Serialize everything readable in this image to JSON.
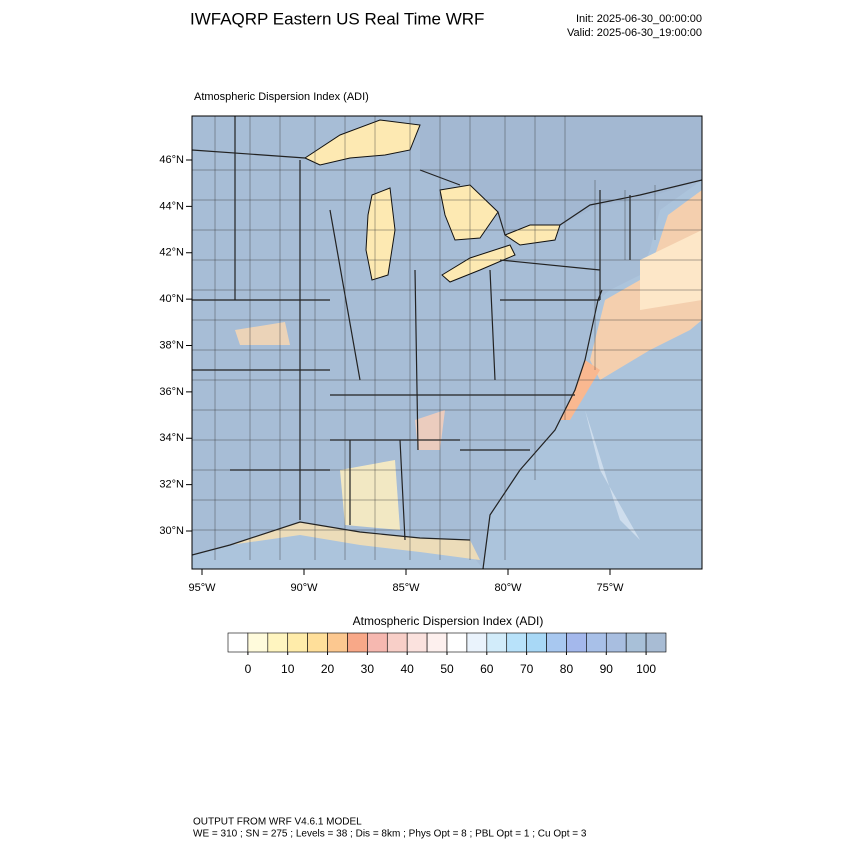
{
  "header": {
    "title": "IWFAQRP Eastern US Real Time WRF",
    "init": "Init: 2025-06-30_00:00:00",
    "valid": "Valid: 2025-06-30_19:00:00"
  },
  "map": {
    "title": "Atmospheric Dispersion Index   (ADI)",
    "lat_ticks": [
      {
        "value": 30,
        "label": "30°N"
      },
      {
        "value": 32,
        "label": "32°N"
      },
      {
        "value": 34,
        "label": "34°N"
      },
      {
        "value": 36,
        "label": "36°N"
      },
      {
        "value": 38,
        "label": "38°N"
      },
      {
        "value": 40,
        "label": "40°N"
      },
      {
        "value": 42,
        "label": "42°N"
      },
      {
        "value": 44,
        "label": "44°N"
      },
      {
        "value": 46,
        "label": "46°N"
      }
    ],
    "lon_ticks": [
      {
        "value": -95,
        "label": "95°W"
      },
      {
        "value": -90,
        "label": "90°W"
      },
      {
        "value": -85,
        "label": "85°W"
      },
      {
        "value": -80,
        "label": "80°W"
      },
      {
        "value": -75,
        "label": "75°W"
      }
    ]
  },
  "colorbar": {
    "title": "Atmospheric Dispersion Index  (ADI)",
    "ticks": [
      0,
      10,
      20,
      30,
      40,
      50,
      60,
      70,
      80,
      90,
      100
    ],
    "colors": [
      "#ffffff",
      "#fffbdc",
      "#fff5c0",
      "#ffecaa",
      "#ffdf9a",
      "#fcc890",
      "#f8a888",
      "#f6b8b0",
      "#f8cfc8",
      "#fbe2de",
      "#fdf0ee",
      "#ffffff",
      "#eaf3fc",
      "#d2ecfa",
      "#b8e2fa",
      "#a8d8f6",
      "#a8c8f0",
      "#a4b8ec",
      "#a8c0e8",
      "#a8bee0",
      "#a8c0d8",
      "#a8bcd4"
    ]
  },
  "footer": {
    "line1": "OUTPUT FROM WRF V4.6.1 MODEL",
    "line2": "WE = 310 ; SN = 275 ; Levels = 38 ; Dis = 8km ; Phys Opt = 8 ; PBL Opt = 1 ; Cu Opt = 3"
  }
}
